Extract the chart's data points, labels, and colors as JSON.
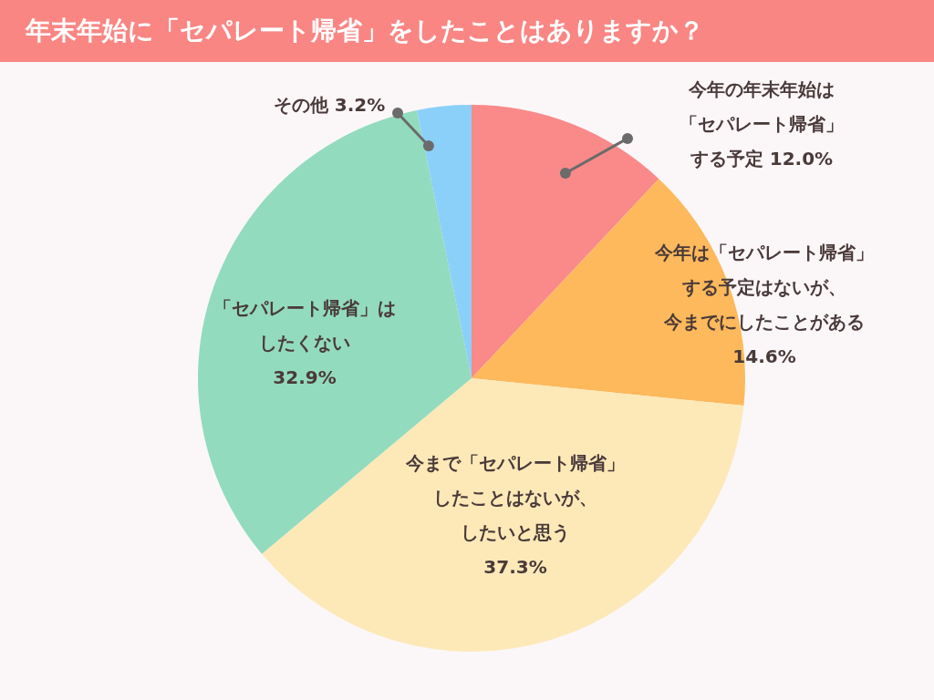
{
  "chart_data": {
    "type": "pie",
    "title": "年末年始に「セパレート帰省」をしたことはありますか？",
    "categories": [
      "今年の年末年始は「セパレート帰省」する予定",
      "今年は「セパレート帰省」する予定はないが、今までにしたことがある",
      "今まで「セパレート帰省」したことはないが、したいと思う",
      "「セパレート帰省」はしたくない",
      "その他"
    ],
    "values": [
      12.0,
      14.6,
      37.3,
      32.9,
      3.2
    ],
    "value_labels": [
      "12.0%",
      "14.6%",
      "37.3%",
      "32.9%",
      "3.2%"
    ],
    "colors": [
      "#f98a89",
      "#fdb95c",
      "#fde9b8",
      "#93dbbf",
      "#8bd0f8"
    ]
  }
}
